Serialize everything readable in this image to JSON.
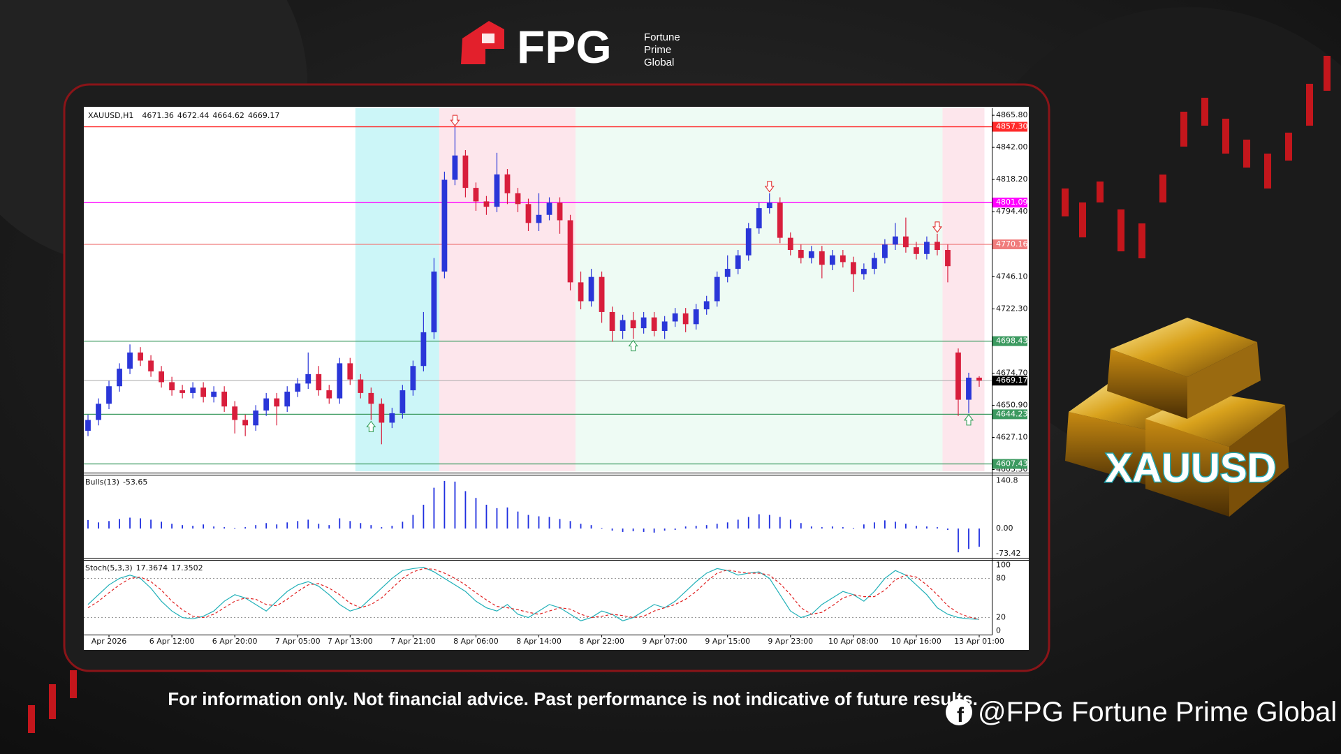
{
  "header": {
    "brand": "FPG",
    "tagline": [
      "Fortune",
      "Prime",
      "Global"
    ]
  },
  "chart_data": {
    "type": "candlestick",
    "title": "XAUUSD,H1",
    "up_color": "#2a36d8",
    "down_color": "#d81e3c",
    "open": [
      4632,
      4640,
      4652,
      4665,
      4678,
      4690,
      4684,
      4676,
      4668,
      4662,
      4660,
      4664,
      4657,
      4661,
      4650,
      4640,
      4636,
      4647,
      4656,
      4650,
      4661,
      4667,
      4674,
      4662,
      4656,
      4682,
      4670,
      4660,
      4652,
      4638,
      4645,
      4662,
      4680,
      4705,
      4750,
      4818,
      4836,
      4812,
      4802,
      4798,
      4822,
      4808,
      4800,
      4786,
      4792,
      4801,
      4788,
      4742,
      4728,
      4746,
      4720,
      4706,
      4714,
      4708,
      4716,
      4706,
      4713,
      4719,
      4711,
      4722,
      4728,
      4746,
      4752,
      4762,
      4782,
      4797,
      4801,
      4775,
      4766,
      4760,
      4765,
      4755,
      4762,
      4757,
      4748,
      4752,
      4760,
      4770,
      4776,
      4768,
      4763,
      4772,
      4766,
      4690,
      4655,
      4671.36
    ],
    "high": [
      4644,
      4656,
      4669,
      4682,
      4696,
      4694,
      4688,
      4680,
      4672,
      4666,
      4668,
      4668,
      4665,
      4665,
      4654,
      4644,
      4651,
      4660,
      4660,
      4665,
      4671,
      4690,
      4680,
      4666,
      4686,
      4686,
      4674,
      4664,
      4656,
      4649,
      4666,
      4684,
      4720,
      4760,
      4824,
      4857,
      4840,
      4816,
      4806,
      4838,
      4826,
      4812,
      4804,
      4808,
      4805,
      4805,
      4792,
      4750,
      4752,
      4750,
      4724,
      4718,
      4720,
      4720,
      4720,
      4717,
      4723,
      4723,
      4726,
      4732,
      4750,
      4762,
      4766,
      4786,
      4801,
      4808,
      4805,
      4779,
      4770,
      4769,
      4769,
      4766,
      4766,
      4761,
      4756,
      4764,
      4774,
      4786,
      4790,
      4772,
      4776,
      4778,
      4770,
      4693,
      4675,
      4672.44
    ],
    "low": [
      4628,
      4636,
      4648,
      4661,
      4674,
      4680,
      4672,
      4664,
      4658,
      4656,
      4656,
      4653,
      4653,
      4646,
      4630,
      4628,
      4632,
      4643,
      4636,
      4646,
      4657,
      4663,
      4658,
      4652,
      4652,
      4666,
      4656,
      4640,
      4622,
      4634,
      4641,
      4658,
      4676,
      4700,
      4745,
      4814,
      4805,
      4795,
      4792,
      4794,
      4800,
      4794,
      4780,
      4780,
      4788,
      4778,
      4736,
      4722,
      4724,
      4712,
      4698,
      4700,
      4700,
      4704,
      4702,
      4700,
      4709,
      4705,
      4707,
      4718,
      4724,
      4742,
      4748,
      4758,
      4778,
      4793,
      4771,
      4762,
      4756,
      4756,
      4745,
      4751,
      4753,
      4735,
      4744,
      4748,
      4756,
      4766,
      4764,
      4759,
      4759,
      4762,
      4742,
      4643,
      4645,
      4664.62
    ],
    "close": [
      4640,
      4652,
      4665,
      4678,
      4690,
      4684,
      4676,
      4668,
      4662,
      4660,
      4664,
      4657,
      4661,
      4650,
      4640,
      4636,
      4647,
      4656,
      4650,
      4661,
      4667,
      4674,
      4662,
      4656,
      4682,
      4670,
      4660,
      4652,
      4638,
      4645,
      4662,
      4680,
      4705,
      4750,
      4818,
      4836,
      4812,
      4802,
      4798,
      4822,
      4808,
      4800,
      4786,
      4792,
      4801,
      4788,
      4742,
      4728,
      4746,
      4720,
      4706,
      4714,
      4708,
      4716,
      4706,
      4713,
      4719,
      4711,
      4722,
      4728,
      4746,
      4752,
      4762,
      4782,
      4797,
      4801,
      4775,
      4766,
      4760,
      4765,
      4755,
      4762,
      4757,
      4748,
      4752,
      4760,
      4770,
      4776,
      4768,
      4763,
      4772,
      4766,
      4754,
      4655,
      4671.36,
      4669.17
    ],
    "ylim": [
      4602,
      4870
    ],
    "yticks": [
      {
        "value": 4865.8,
        "label": "4865.80"
      },
      {
        "value": 4842,
        "label": "4842.00"
      },
      {
        "value": 4818.2,
        "label": "4818.20"
      },
      {
        "value": 4794.4,
        "label": "4794.40"
      },
      {
        "value": 4746.1,
        "label": "4746.10"
      },
      {
        "value": 4722.3,
        "label": "4722.30"
      },
      {
        "value": 4674.7,
        "label": "4674.70"
      },
      {
        "value": 4650.9,
        "label": "4650.90"
      },
      {
        "value": 4627.1,
        "label": "4627.10"
      },
      {
        "value": 4603.3,
        "label": "4603.30"
      }
    ],
    "levels": [
      {
        "value": 4857.3,
        "label": "4857.30",
        "color": "#ff2a2a"
      },
      {
        "value": 4801.09,
        "label": "4801.09",
        "color": "#ff00ff"
      },
      {
        "value": 4770.16,
        "label": "4770.16",
        "color": "#f07c7c"
      },
      {
        "value": 4698.43,
        "label": "4698.43",
        "color": "#3c9a60"
      },
      {
        "value": 4644.23,
        "label": "4644.23",
        "color": "#3c9a60"
      },
      {
        "value": 4607.43,
        "label": "4607.43",
        "color": "#3c9a60"
      }
    ],
    "zones": [
      {
        "from": 26,
        "to": 33,
        "color": "#ccf6f8"
      },
      {
        "from": 34,
        "to": 46,
        "color": "#fde6ec"
      },
      {
        "from": 47,
        "to": 81,
        "color": "#eefbf4"
      },
      {
        "from": 82,
        "to": 85,
        "color": "#fde6ec"
      }
    ],
    "signals": [
      {
        "index": 35,
        "direction": "down"
      },
      {
        "index": 65,
        "direction": "down"
      },
      {
        "index": 81,
        "direction": "down"
      },
      {
        "index": 27,
        "direction": "up"
      },
      {
        "index": 52,
        "direction": "up"
      },
      {
        "index": 84,
        "direction": "up"
      }
    ],
    "xticks": [
      {
        "value": 2,
        "label": "Apr 2026"
      },
      {
        "value": 8,
        "label": "6 Apr 12:00"
      },
      {
        "value": 14,
        "label": "6 Apr 20:00"
      },
      {
        "value": 20,
        "label": "7 Apr 05:00"
      },
      {
        "value": 25,
        "label": "7 Apr 13:00"
      },
      {
        "value": 31,
        "label": "7 Apr 21:00"
      },
      {
        "value": 37,
        "label": "8 Apr 06:00"
      },
      {
        "value": 43,
        "label": "8 Apr 14:00"
      },
      {
        "value": 49,
        "label": "8 Apr 22:00"
      },
      {
        "value": 55,
        "label": "9 Apr 07:00"
      },
      {
        "value": 61,
        "label": "9 Apr 15:00"
      },
      {
        "value": 67,
        "label": "9 Apr 23:00"
      },
      {
        "value": 73,
        "label": "10 Apr 08:00"
      },
      {
        "value": 79,
        "label": "10 Apr 16:00"
      },
      {
        "value": 85,
        "label": "13 Apr 01:00"
      }
    ],
    "panels": [
      {
        "type": "bar",
        "name": "Bulls(13)",
        "color": "#1f2fe0",
        "ylim": [
          -80,
          150
        ],
        "yticks": [
          140.8,
          {
            "value": 0,
            "label": "0.00"
          },
          -73.42
        ],
        "values": [
          25,
          18,
          22,
          28,
          32,
          30,
          26,
          20,
          14,
          10,
          8,
          12,
          6,
          4,
          2,
          4,
          10,
          16,
          12,
          18,
          22,
          26,
          14,
          10,
          30,
          22,
          16,
          10,
          4,
          8,
          20,
          40,
          70,
          120,
          140,
          138,
          110,
          90,
          70,
          60,
          62,
          50,
          40,
          36,
          34,
          28,
          22,
          14,
          10,
          2,
          -6,
          -10,
          -8,
          -10,
          -12,
          -6,
          -4,
          6,
          8,
          10,
          14,
          18,
          26,
          34,
          42,
          40,
          34,
          26,
          16,
          6,
          4,
          6,
          4,
          2,
          12,
          18,
          24,
          20,
          14,
          8,
          6,
          4,
          -4,
          -70,
          -60,
          -53.65
        ]
      },
      {
        "type": "line",
        "name": "Stoch(5,3,3)",
        "ylim": [
          -4,
          104
        ],
        "yticks": [
          100,
          80,
          20,
          0
        ],
        "levels": [
          80,
          20
        ],
        "series": [
          {
            "color": "#20b0b8",
            "values": [
              40,
              55,
              70,
              80,
              85,
              80,
              65,
              45,
              30,
              20,
              18,
              22,
              30,
              45,
              55,
              50,
              40,
              30,
              45,
              60,
              70,
              75,
              68,
              55,
              40,
              30,
              35,
              50,
              65,
              80,
              92,
              95,
              97,
              90,
              80,
              70,
              60,
              45,
              35,
              30,
              40,
              25,
              20,
              30,
              40,
              35,
              25,
              15,
              20,
              30,
              25,
              15,
              20,
              30,
              40,
              35,
              45,
              60,
              75,
              88,
              95,
              92,
              85,
              88,
              90,
              80,
              55,
              30,
              20,
              25,
              40,
              50,
              60,
              55,
              45,
              60,
              80,
              92,
              85,
              70,
              55,
              35,
              25,
              20,
              18,
              17.3674
            ]
          },
          {
            "color": "#e02020",
            "dashed": true,
            "values": [
              35,
              45,
              58,
              70,
              80,
              82,
              75,
              62,
              45,
              32,
              22,
              20,
              25,
              35,
              45,
              50,
              48,
              40,
              38,
              48,
              60,
              70,
              72,
              65,
              55,
              42,
              35,
              40,
              50,
              65,
              80,
              90,
              95,
              94,
              88,
              80,
              70,
              58,
              47,
              37,
              35,
              32,
              28,
              25,
              30,
              35,
              33,
              25,
              20,
              22,
              25,
              23,
              20,
              22,
              30,
              35,
              40,
              48,
              60,
              75,
              88,
              93,
              90,
              88,
              88,
              85,
              72,
              55,
              35,
              25,
              28,
              38,
              50,
              55,
              52,
              52,
              62,
              78,
              85,
              82,
              70,
              55,
              38,
              27,
              21,
              17.3502
            ]
          }
        ]
      }
    ]
  },
  "badge": "XAUUSD",
  "disclaimer": "For information only. Not financial advice. Past performance is not indicative of future results.",
  "social": "@FPG Fortune Prime Global"
}
